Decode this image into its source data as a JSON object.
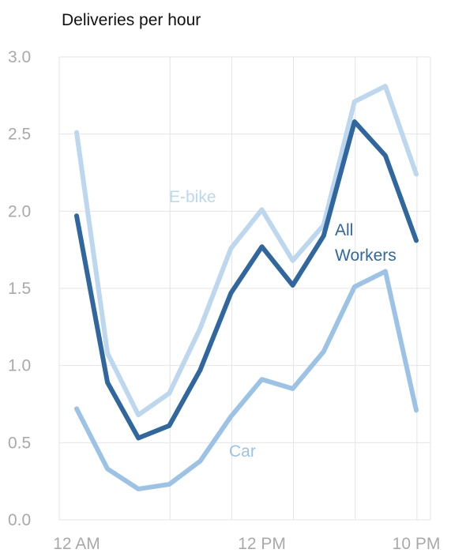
{
  "chart_data": {
    "type": "line",
    "title": "Deliveries per hour",
    "xlabel": "",
    "ylabel": "",
    "x_tick_labels": [
      "12 AM",
      "12 PM",
      "10 PM"
    ],
    "x_tick_hours": [
      0,
      12,
      22
    ],
    "y_ticks": [
      "0.0",
      "0.5",
      "1.0",
      "1.5",
      "2.0",
      "2.5",
      "3.0"
    ],
    "ylim": [
      0,
      3
    ],
    "grid": true,
    "x": [
      0,
      2,
      4,
      6,
      8,
      10,
      12,
      14,
      16,
      18,
      20,
      22
    ],
    "series": [
      {
        "name": "E-bike",
        "color": "#bcd7ee",
        "values": [
          2.51,
          1.08,
          0.68,
          0.82,
          1.24,
          1.76,
          2.01,
          1.68,
          1.91,
          2.71,
          2.81,
          2.24
        ]
      },
      {
        "name": "All Workers",
        "color": "#30679f",
        "values": [
          1.97,
          0.89,
          0.53,
          0.61,
          0.97,
          1.47,
          1.77,
          1.52,
          1.84,
          2.58,
          2.36,
          1.81
        ]
      },
      {
        "name": "Car",
        "color": "#9cc3e6",
        "values": [
          0.72,
          0.33,
          0.2,
          0.23,
          0.38,
          0.67,
          0.91,
          0.85,
          1.09,
          1.51,
          1.61,
          0.71
        ]
      }
    ],
    "labels": {
      "ebike": "E-bike",
      "all_line1": "All",
      "all_line2": "Workers",
      "car": "Car"
    }
  }
}
